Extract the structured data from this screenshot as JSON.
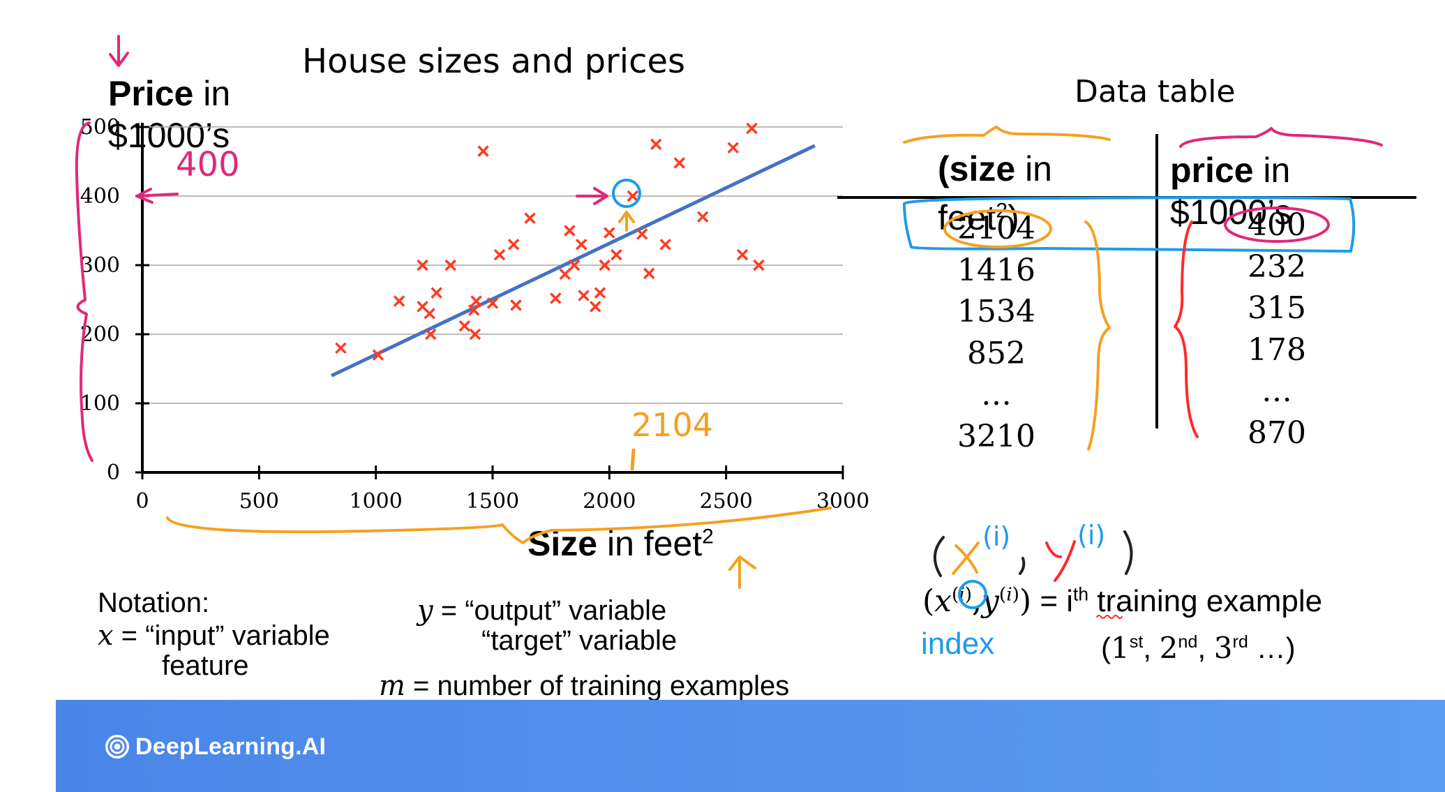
{
  "colors": {
    "line": "#4472c4",
    "marker": "#ff3b1f",
    "footer_left": "#4a86e8",
    "footer_right": "#5a9cf0",
    "ink_pink": "#e0287a",
    "ink_orange": "#f5a021",
    "ink_blue": "#1e9be9",
    "ink_red": "#ff2a2a",
    "index_blue": "#1e9be9"
  },
  "chart_data": {
    "type": "scatter",
    "title": "House sizes and prices",
    "xlabel": "Size in feet²",
    "ylabel": "Price in $1000’s",
    "xlim": [
      0,
      3000
    ],
    "ylim": [
      0,
      500
    ],
    "xticks": [
      0,
      500,
      1000,
      1500,
      2000,
      2500,
      3000
    ],
    "yticks": [
      0,
      100,
      200,
      300,
      400,
      500
    ],
    "grid": "horizontal",
    "points": [
      [
        850,
        180
      ],
      [
        1010,
        170
      ],
      [
        1100,
        248
      ],
      [
        1200,
        300
      ],
      [
        1200,
        240
      ],
      [
        1230,
        230
      ],
      [
        1235,
        200
      ],
      [
        1260,
        260
      ],
      [
        1320,
        300
      ],
      [
        1380,
        212
      ],
      [
        1420,
        235
      ],
      [
        1425,
        200
      ],
      [
        1430,
        248
      ],
      [
        1460,
        465
      ],
      [
        1500,
        245
      ],
      [
        1530,
        315
      ],
      [
        1590,
        330
      ],
      [
        1600,
        242
      ],
      [
        1660,
        368
      ],
      [
        1770,
        252
      ],
      [
        1810,
        287
      ],
      [
        1830,
        350
      ],
      [
        1850,
        300
      ],
      [
        1880,
        330
      ],
      [
        1890,
        256
      ],
      [
        1940,
        240
      ],
      [
        1960,
        260
      ],
      [
        1980,
        300
      ],
      [
        2000,
        347
      ],
      [
        2030,
        315
      ],
      [
        2100,
        400
      ],
      [
        2140,
        345
      ],
      [
        2170,
        288
      ],
      [
        2200,
        475
      ],
      [
        2240,
        330
      ],
      [
        2300,
        448
      ],
      [
        2400,
        370
      ],
      [
        2530,
        470
      ],
      [
        2570,
        315
      ],
      [
        2610,
        498
      ],
      [
        2640,
        300
      ]
    ],
    "fit_line": {
      "x": [
        810,
        2880
      ],
      "y": [
        140,
        473
      ]
    }
  },
  "annotations": {
    "top_arrow_mark": "↓",
    "y_400_note": "400",
    "x_2104_note": "2104"
  },
  "table": {
    "title": "Data table",
    "col1_header_bold": "(size",
    "col1_header_rest": " in feet²)",
    "col2_header_bold": "price",
    "col2_header_rest": " in $1000’s",
    "col1_values": [
      "2104",
      "1416",
      "1534",
      "852",
      "…",
      "3210"
    ],
    "col2_values": [
      "400",
      "232",
      "315",
      "178",
      "…",
      "870"
    ]
  },
  "notation": {
    "heading": "Notation:",
    "x_var": "x",
    "x_desc": " = “input” variable",
    "x_desc2": "feature",
    "y_var": "y",
    "y_desc": " = “output” variable",
    "y_desc2": "“target” variable",
    "m_var": "m",
    "m_desc": " = number of training examples"
  },
  "training_example": {
    "label": " = i",
    "label_sup": "th",
    "label_rest": " training example",
    "index_word": "index",
    "ordinals": "(1st, 2nd, 3rd …)"
  },
  "footer": {
    "brand": "DeepLearning.AI"
  }
}
